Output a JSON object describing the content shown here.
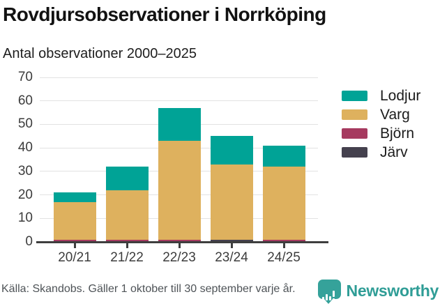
{
  "title": "Rovdjursobservationer i Norrköping",
  "subtitle": "Antal observationer 2000–2025",
  "footer": {
    "source": "Källa: Skandobs. Gäller 1 oktober till 30 september varje år.",
    "brand": "Newsworthy"
  },
  "colors": {
    "lodjur": "#00a396",
    "varg": "#deb15e",
    "bjorn": "#a63a5f",
    "jarv": "#45414e",
    "axis": "#3e3e3e",
    "gridline": "#e2e2e2",
    "brand_teal": "#35a29a"
  },
  "chart_data": {
    "type": "bar",
    "stacked": true,
    "title": "Rovdjursobservationer i Norrköping",
    "subtitle": "Antal observationer 2000–2025",
    "xlabel": "",
    "ylabel": "Antal observationer",
    "categories": [
      "20/21",
      "21/22",
      "22/23",
      "23/24",
      "24/25"
    ],
    "series": [
      {
        "name": "Lodjur",
        "color": "#00a396",
        "values": [
          4,
          10,
          14,
          12,
          9
        ]
      },
      {
        "name": "Varg",
        "color": "#deb15e",
        "values": [
          16,
          21,
          42,
          32,
          31
        ]
      },
      {
        "name": "Björn",
        "color": "#a63a5f",
        "values": [
          1,
          1,
          1,
          0,
          1
        ]
      },
      {
        "name": "Järv",
        "color": "#45414e",
        "values": [
          0,
          0,
          0,
          1,
          0
        ]
      }
    ],
    "totals": [
      21,
      32,
      57,
      45,
      41
    ],
    "ylim": [
      0,
      70
    ],
    "yticks": [
      0,
      10,
      20,
      30,
      40,
      50,
      60,
      70
    ],
    "grid": true,
    "legend_position": "right"
  }
}
